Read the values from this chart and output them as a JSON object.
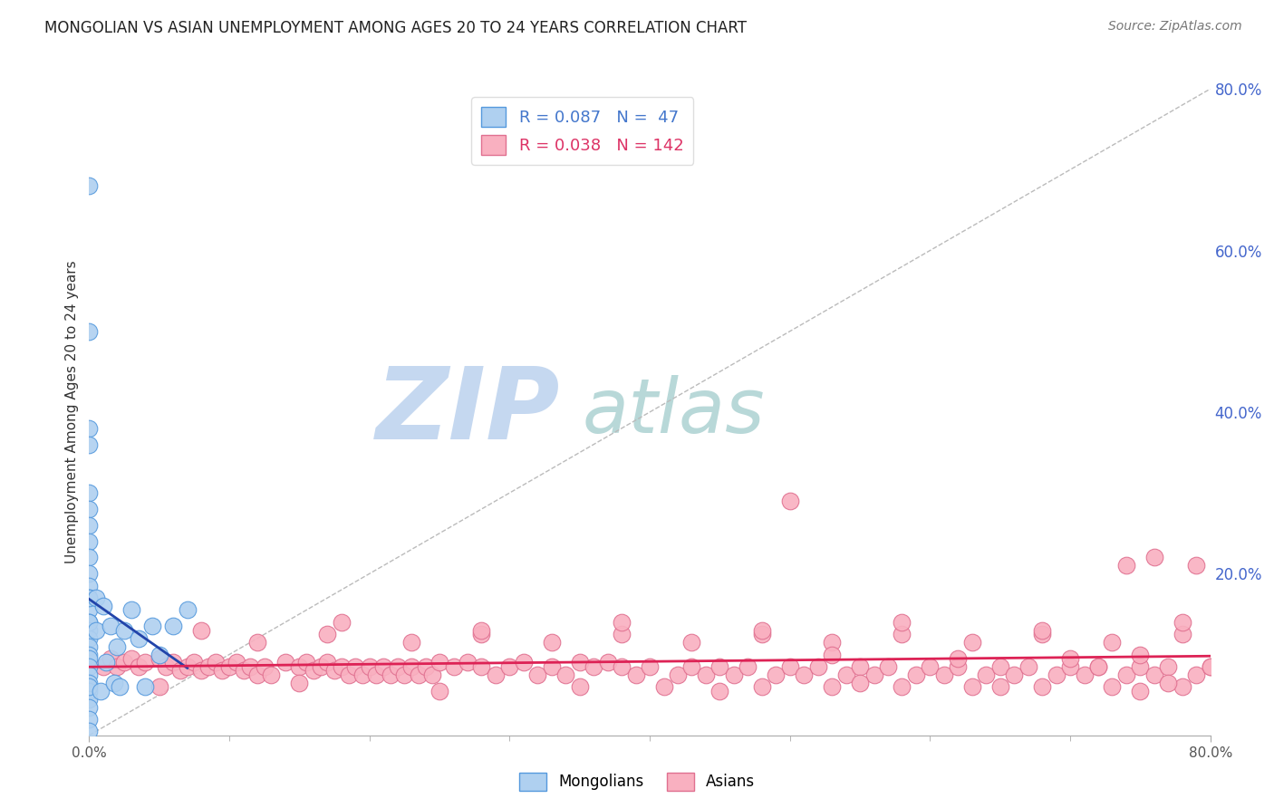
{
  "title": "MONGOLIAN VS ASIAN UNEMPLOYMENT AMONG AGES 20 TO 24 YEARS CORRELATION CHART",
  "source": "Source: ZipAtlas.com",
  "ylabel": "Unemployment Among Ages 20 to 24 years",
  "xlim": [
    0.0,
    0.8
  ],
  "ylim": [
    0.0,
    0.8
  ],
  "right_yticks": [
    0.0,
    0.2,
    0.4,
    0.6,
    0.8
  ],
  "right_yticklabels": [
    "",
    "20.0%",
    "40.0%",
    "60.0%",
    "80.0%"
  ],
  "mongolian_color": "#afd0f0",
  "mongolian_edge_color": "#5599dd",
  "asian_color": "#f9b0c0",
  "asian_edge_color": "#e07090",
  "mongolian_R": 0.087,
  "mongolian_N": 47,
  "asian_R": 0.038,
  "asian_N": 142,
  "regression_line_mongolian_color": "#2244aa",
  "regression_line_asian_color": "#dd2255",
  "diagonal_color": "#bbbbbb",
  "watermark_zip": "ZIP",
  "watermark_atlas": "atlas",
  "watermark_color_zip": "#c8d8f0",
  "watermark_color_atlas": "#c8d8e0",
  "mongolian_x": [
    0.0,
    0.0,
    0.0,
    0.0,
    0.0,
    0.0,
    0.0,
    0.0,
    0.0,
    0.0,
    0.0,
    0.0,
    0.0,
    0.0,
    0.0,
    0.0,
    0.0,
    0.0,
    0.0,
    0.0,
    0.0,
    0.0,
    0.0,
    0.0,
    0.0,
    0.0,
    0.0,
    0.0,
    0.0,
    0.0,
    0.005,
    0.005,
    0.008,
    0.01,
    0.012,
    0.015,
    0.018,
    0.02,
    0.022,
    0.025,
    0.03,
    0.035,
    0.04,
    0.045,
    0.05,
    0.06,
    0.07
  ],
  "mongolian_y": [
    0.68,
    0.5,
    0.38,
    0.36,
    0.3,
    0.28,
    0.26,
    0.24,
    0.22,
    0.2,
    0.185,
    0.17,
    0.155,
    0.14,
    0.13,
    0.12,
    0.11,
    0.1,
    0.095,
    0.085,
    0.075,
    0.065,
    0.055,
    0.045,
    0.035,
    0.02,
    0.005,
    0.17,
    0.14,
    0.06,
    0.17,
    0.13,
    0.055,
    0.16,
    0.09,
    0.135,
    0.065,
    0.11,
    0.06,
    0.13,
    0.155,
    0.12,
    0.06,
    0.135,
    0.1,
    0.135,
    0.155
  ],
  "asian_x": [
    0.01,
    0.015,
    0.02,
    0.025,
    0.03,
    0.035,
    0.04,
    0.05,
    0.055,
    0.06,
    0.065,
    0.07,
    0.075,
    0.08,
    0.085,
    0.09,
    0.095,
    0.1,
    0.105,
    0.11,
    0.115,
    0.12,
    0.125,
    0.13,
    0.14,
    0.15,
    0.155,
    0.16,
    0.165,
    0.17,
    0.175,
    0.18,
    0.185,
    0.19,
    0.195,
    0.2,
    0.205,
    0.21,
    0.215,
    0.22,
    0.225,
    0.23,
    0.235,
    0.24,
    0.245,
    0.25,
    0.26,
    0.27,
    0.28,
    0.29,
    0.3,
    0.31,
    0.32,
    0.33,
    0.34,
    0.35,
    0.36,
    0.37,
    0.38,
    0.39,
    0.4,
    0.41,
    0.42,
    0.43,
    0.44,
    0.45,
    0.46,
    0.47,
    0.48,
    0.49,
    0.5,
    0.51,
    0.52,
    0.53,
    0.54,
    0.55,
    0.56,
    0.57,
    0.58,
    0.59,
    0.6,
    0.61,
    0.62,
    0.63,
    0.64,
    0.65,
    0.66,
    0.67,
    0.68,
    0.69,
    0.7,
    0.71,
    0.72,
    0.73,
    0.74,
    0.75,
    0.76,
    0.77,
    0.78,
    0.79,
    0.8,
    0.12,
    0.17,
    0.23,
    0.28,
    0.33,
    0.38,
    0.43,
    0.48,
    0.53,
    0.58,
    0.63,
    0.68,
    0.73,
    0.78,
    0.08,
    0.18,
    0.28,
    0.38,
    0.48,
    0.58,
    0.68,
    0.78,
    0.05,
    0.15,
    0.25,
    0.35,
    0.45,
    0.55,
    0.65,
    0.75,
    0.5,
    0.62,
    0.74,
    0.76,
    0.77,
    0.79,
    0.8,
    0.53,
    0.7,
    0.72,
    0.75
  ],
  "asian_y": [
    0.085,
    0.095,
    0.085,
    0.09,
    0.095,
    0.085,
    0.09,
    0.095,
    0.085,
    0.09,
    0.08,
    0.085,
    0.09,
    0.08,
    0.085,
    0.09,
    0.08,
    0.085,
    0.09,
    0.08,
    0.085,
    0.075,
    0.085,
    0.075,
    0.09,
    0.085,
    0.09,
    0.08,
    0.085,
    0.09,
    0.08,
    0.085,
    0.075,
    0.085,
    0.075,
    0.085,
    0.075,
    0.085,
    0.075,
    0.085,
    0.075,
    0.085,
    0.075,
    0.085,
    0.075,
    0.09,
    0.085,
    0.09,
    0.085,
    0.075,
    0.085,
    0.09,
    0.075,
    0.085,
    0.075,
    0.09,
    0.085,
    0.09,
    0.085,
    0.075,
    0.085,
    0.06,
    0.075,
    0.085,
    0.075,
    0.085,
    0.075,
    0.085,
    0.06,
    0.075,
    0.085,
    0.075,
    0.085,
    0.06,
    0.075,
    0.085,
    0.075,
    0.085,
    0.06,
    0.075,
    0.085,
    0.075,
    0.085,
    0.06,
    0.075,
    0.085,
    0.075,
    0.085,
    0.06,
    0.075,
    0.085,
    0.075,
    0.085,
    0.06,
    0.075,
    0.085,
    0.075,
    0.085,
    0.06,
    0.075,
    0.085,
    0.115,
    0.125,
    0.115,
    0.125,
    0.115,
    0.125,
    0.115,
    0.125,
    0.115,
    0.125,
    0.115,
    0.125,
    0.115,
    0.125,
    0.13,
    0.14,
    0.13,
    0.14,
    0.13,
    0.14,
    0.13,
    0.14,
    0.06,
    0.065,
    0.055,
    0.06,
    0.055,
    0.065,
    0.06,
    0.055,
    0.29,
    0.095,
    0.21,
    0.22,
    0.065,
    0.21,
    0.085,
    0.1,
    0.095,
    0.085,
    0.1
  ]
}
